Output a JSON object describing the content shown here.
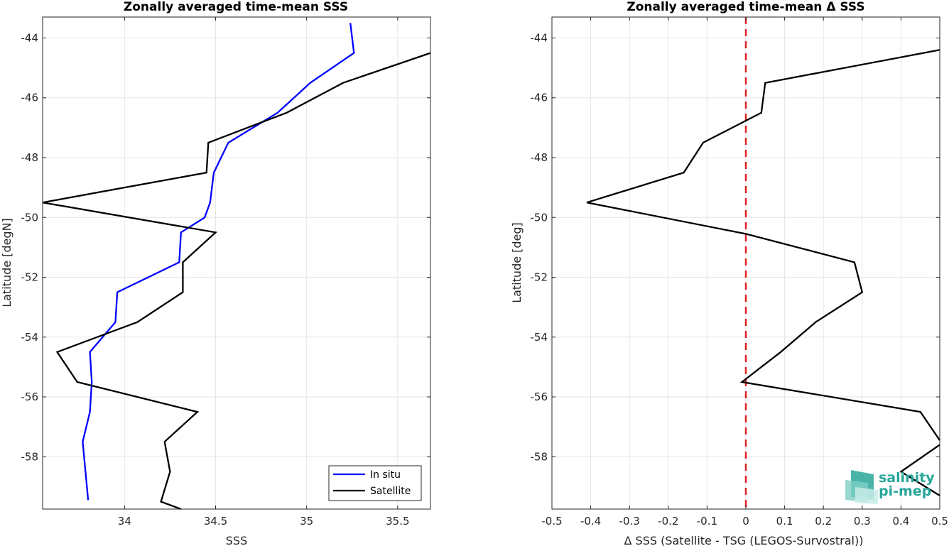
{
  "colors": {
    "in_situ": "#0000ff",
    "satellite": "#000000",
    "zero_line": "#e02020",
    "logo": "#2aa79a"
  },
  "logo": {
    "line1": "salinity",
    "line2": "pi-mep"
  },
  "chart_data": [
    {
      "type": "line",
      "title": "Zonally averaged time-mean SSS",
      "xlabel": "SSS",
      "ylabel": "Latitude [degN]",
      "xlim": [
        33.55,
        35.68
      ],
      "ylim": [
        -59.75,
        -43.3
      ],
      "xticks": [
        34,
        34.5,
        35,
        35.5
      ],
      "xtick_labels": [
        "34",
        "34.5",
        "35",
        "35.5"
      ],
      "yticks": [
        -58,
        -56,
        -54,
        -52,
        -50,
        -48,
        -46,
        -44
      ],
      "ytick_labels": [
        "-58",
        "-56",
        "-54",
        "-52",
        "-50",
        "-48",
        "-46",
        "-44"
      ],
      "grid": true,
      "legend": {
        "location": "bottom-right",
        "entries": [
          "In situ",
          "Satellite"
        ]
      },
      "series": [
        {
          "name": "In situ",
          "color": "#0000ff",
          "points": [
            [
              35.24,
              -43.5
            ],
            [
              35.26,
              -44.5
            ],
            [
              35.02,
              -45.5
            ],
            [
              34.84,
              -46.5
            ],
            [
              34.57,
              -47.5
            ],
            [
              34.49,
              -48.5
            ],
            [
              34.47,
              -49.5
            ],
            [
              34.44,
              -50.0
            ],
            [
              34.31,
              -50.5
            ],
            [
              34.3,
              -51.5
            ],
            [
              33.96,
              -52.5
            ],
            [
              33.95,
              -53.5
            ],
            [
              33.81,
              -54.5
            ],
            [
              33.82,
              -55.5
            ],
            [
              33.81,
              -56.5
            ],
            [
              33.77,
              -57.5
            ],
            [
              33.8,
              -59.45
            ]
          ]
        },
        {
          "name": "Satellite",
          "color": "#000000",
          "points": [
            [
              35.68,
              -44.5
            ],
            [
              35.2,
              -45.5
            ],
            [
              34.89,
              -46.5
            ],
            [
              34.46,
              -47.5
            ],
            [
              34.45,
              -48.5
            ],
            [
              33.55,
              -49.5
            ],
            [
              34.5,
              -50.5
            ],
            [
              34.32,
              -51.5
            ],
            [
              34.32,
              -52.5
            ],
            [
              34.07,
              -53.5
            ],
            [
              33.63,
              -54.5
            ],
            [
              33.74,
              -55.5
            ],
            [
              34.4,
              -56.5
            ],
            [
              34.22,
              -57.5
            ],
            [
              34.25,
              -58.5
            ],
            [
              34.2,
              -59.5
            ],
            [
              34.31,
              -59.75
            ]
          ]
        }
      ]
    },
    {
      "type": "line",
      "title": "Zonally averaged time-mean Δ SSS",
      "xlabel": "Δ SSS (Satellite - TSG (LEGOS-Survostral))",
      "ylabel": "Latitude [deg]",
      "xlim": [
        -0.5,
        0.5
      ],
      "ylim": [
        -59.75,
        -43.3
      ],
      "xticks": [
        -0.5,
        -0.4,
        -0.3,
        -0.2,
        -0.1,
        0,
        0.1,
        0.2,
        0.3,
        0.4,
        0.5
      ],
      "xtick_labels": [
        "-0.5",
        "-0.4",
        "-0.3",
        "-0.2",
        "-0.1",
        "0",
        "0.1",
        "0.2",
        "0.3",
        "0.4",
        "0.5"
      ],
      "yticks": [
        -58,
        -56,
        -54,
        -52,
        -50,
        -48,
        -46,
        -44
      ],
      "ytick_labels": [
        "-58",
        "-56",
        "-54",
        "-52",
        "-50",
        "-48",
        "-46",
        "-44"
      ],
      "grid": true,
      "reference_line": {
        "x": 0,
        "color": "#e02020",
        "style": "dashed"
      },
      "series": [
        {
          "color": "#000000",
          "points": [
            [
              0.5,
              -44.4
            ],
            [
              0.05,
              -45.5
            ],
            [
              0.04,
              -46.5
            ],
            [
              -0.11,
              -47.5
            ],
            [
              -0.16,
              -48.5
            ],
            [
              -0.41,
              -49.5
            ],
            [
              0.0,
              -50.55
            ],
            [
              0.28,
              -51.5
            ],
            [
              0.3,
              -52.5
            ],
            [
              0.18,
              -53.5
            ],
            [
              0.09,
              -54.5
            ],
            [
              -0.01,
              -55.5
            ],
            [
              0.45,
              -56.5
            ],
            [
              0.5,
              -57.45
            ]
          ]
        },
        {
          "color": "#000000",
          "points": [
            [
              0.5,
              -57.6
            ],
            [
              0.4,
              -58.5
            ],
            [
              0.5,
              -59.3
            ]
          ]
        }
      ]
    }
  ]
}
